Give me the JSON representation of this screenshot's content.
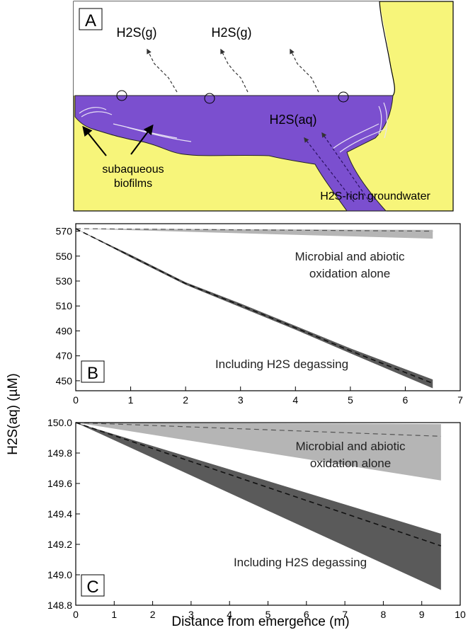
{
  "colors": {
    "water": "#7b4fcf",
    "sediment": "#f7f57a",
    "band_dark": "#5a5a5a",
    "band_light": "#b5b5b5",
    "axis": "#000000"
  },
  "panel_a": {
    "label": "A",
    "gas_label": "H2S(g)",
    "aq_label": "H2S(aq)",
    "biofilm_label_line1": "subaqueous",
    "biofilm_label_line2": "biofilms",
    "groundwater_label": "H2S-rich groundwater"
  },
  "shared": {
    "ylabel": "H2S(aq) (µM)",
    "xlabel": "Distance from emergence (m)"
  },
  "chart_data": [
    {
      "type": "line",
      "panel": "B",
      "xlim": [
        0,
        7
      ],
      "ylim": [
        442,
        576
      ],
      "x_ticks": [
        0,
        1,
        2,
        3,
        4,
        5,
        6,
        7
      ],
      "y_ticks": [
        450,
        470,
        490,
        510,
        530,
        550,
        570
      ],
      "series": [
        {
          "name": "Microbial and abiotic oxidation alone",
          "band": true,
          "x": [
            0,
            6.5
          ],
          "lower": [
            572,
            564
          ],
          "upper": [
            572,
            571
          ],
          "mid": [
            572,
            570
          ]
        },
        {
          "name": "Including H2S degassing",
          "band": true,
          "x": [
            0,
            1,
            2,
            3,
            4,
            5,
            6.5
          ],
          "lower": [
            572,
            549,
            527,
            509,
            491,
            472,
            444
          ],
          "upper": [
            572,
            551,
            529,
            512,
            494,
            476,
            451
          ],
          "mid": [
            572,
            550,
            528,
            510.5,
            492.5,
            474,
            448
          ]
        }
      ],
      "annotations": [
        {
          "text_line1": "Microbial and abiotic",
          "text_line2": "oxidation alone",
          "x": 5.15,
          "y": 557
        },
        {
          "text": "Including H2S degassing",
          "x": 3.7,
          "y": 463
        }
      ]
    },
    {
      "type": "line",
      "panel": "C",
      "xlim": [
        0,
        10
      ],
      "ylim": [
        148.8,
        150.0
      ],
      "x_ticks": [
        0,
        1,
        2,
        3,
        4,
        5,
        6,
        7,
        8,
        9,
        10
      ],
      "y_ticks": [
        148.8,
        149.0,
        149.2,
        149.4,
        149.6,
        149.8,
        150.0
      ],
      "series": [
        {
          "name": "Microbial and abiotic oxidation alone",
          "band": true,
          "x": [
            0,
            9.5
          ],
          "lower": [
            150.0,
            149.62
          ],
          "upper": [
            150.0,
            149.99
          ],
          "mid": [
            150.0,
            149.91
          ]
        },
        {
          "name": "Including H2S degassing",
          "band": true,
          "x": [
            0,
            9.5
          ],
          "lower": [
            150.0,
            148.9
          ],
          "upper": [
            150.0,
            149.27
          ],
          "mid": [
            150.0,
            149.19
          ]
        }
      ],
      "annotations": [
        {
          "text_line1": "Microbial and abiotic",
          "text_line2": "oxidation alone",
          "x": 7.9,
          "y": 149.73
        },
        {
          "text": "Including H2S degassing",
          "x": 6.6,
          "y": 149.02
        }
      ]
    }
  ]
}
